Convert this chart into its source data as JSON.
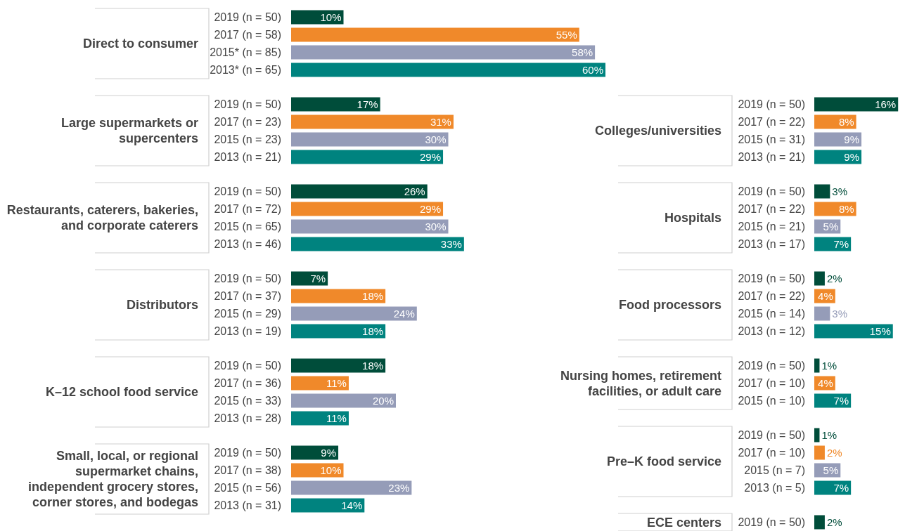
{
  "chart_data": [
    {
      "type": "bar",
      "orientation": "horizontal",
      "title": "Direct to consumer",
      "categories": [
        "2019 (n = 50)",
        "2017 (n = 58)",
        "2015* (n = 85)",
        "2013* (n = 65)"
      ],
      "values": [
        10,
        55,
        58,
        60
      ],
      "value_labels": [
        "10%",
        "55%",
        "58%",
        "60%"
      ],
      "colors": [
        "#004d3a",
        "#f0892a",
        "#959cb8",
        "#00837f"
      ]
    },
    {
      "type": "bar",
      "orientation": "horizontal",
      "title": "Large supermarkets or supercenters",
      "categories": [
        "2019 (n = 50)",
        "2017 (n = 23)",
        "2015 (n = 23)",
        "2013 (n = 21)"
      ],
      "values": [
        17,
        31,
        30,
        29
      ],
      "value_labels": [
        "17%",
        "31%",
        "30%",
        "29%"
      ],
      "colors": [
        "#004d3a",
        "#f0892a",
        "#959cb8",
        "#00837f"
      ]
    },
    {
      "type": "bar",
      "orientation": "horizontal",
      "title": "Restaurants, caterers, bakeries, and corporate caterers",
      "categories": [
        "2019 (n = 50)",
        "2017 (n = 72)",
        "2015 (n = 65)",
        "2013 (n = 46)"
      ],
      "values": [
        26,
        29,
        30,
        33
      ],
      "value_labels": [
        "26%",
        "29%",
        "30%",
        "33%"
      ],
      "colors": [
        "#004d3a",
        "#f0892a",
        "#959cb8",
        "#00837f"
      ]
    },
    {
      "type": "bar",
      "orientation": "horizontal",
      "title": "Distributors",
      "categories": [
        "2019 (n = 50)",
        "2017 (n = 37)",
        "2015 (n = 29)",
        "2013 (n = 19)"
      ],
      "values": [
        7,
        18,
        24,
        18
      ],
      "value_labels": [
        "7%",
        "18%",
        "24%",
        "18%"
      ],
      "colors": [
        "#004d3a",
        "#f0892a",
        "#959cb8",
        "#00837f"
      ]
    },
    {
      "type": "bar",
      "orientation": "horizontal",
      "title": "K–12 school food service",
      "categories": [
        "2019 (n = 50)",
        "2017 (n = 36)",
        "2015 (n = 33)",
        "2013 (n = 28)"
      ],
      "values": [
        18,
        11,
        20,
        11
      ],
      "value_labels": [
        "18%",
        "11%",
        "20%",
        "11%"
      ],
      "colors": [
        "#004d3a",
        "#f0892a",
        "#959cb8",
        "#00837f"
      ]
    },
    {
      "type": "bar",
      "orientation": "horizontal",
      "title": "Small, local, or regional supermarket chains, independent grocery stores, corner stores, and bodegas",
      "categories": [
        "2019 (n = 50)",
        "2017 (n = 38)",
        "2015 (n = 56)",
        "2013 (n = 31)"
      ],
      "values": [
        9,
        10,
        23,
        14
      ],
      "value_labels": [
        "9%",
        "10%",
        "23%",
        "14%"
      ],
      "colors": [
        "#004d3a",
        "#f0892a",
        "#959cb8",
        "#00837f"
      ]
    },
    {
      "type": "bar",
      "orientation": "horizontal",
      "title": "Colleges/universities",
      "categories": [
        "2019 (n = 50)",
        "2017 (n = 22)",
        "2015 (n = 31)",
        "2013 (n = 21)"
      ],
      "values": [
        16,
        8,
        9,
        9
      ],
      "value_labels": [
        "16%",
        "8%",
        "9%",
        "9%"
      ],
      "colors": [
        "#004d3a",
        "#f0892a",
        "#959cb8",
        "#00837f"
      ]
    },
    {
      "type": "bar",
      "orientation": "horizontal",
      "title": "Hospitals",
      "categories": [
        "2019 (n = 50)",
        "2017 (n = 22)",
        "2015 (n = 21)",
        "2013 (n = 17)"
      ],
      "values": [
        3,
        8,
        5,
        7
      ],
      "value_labels": [
        "3%",
        "8%",
        "5%",
        "7%"
      ],
      "colors": [
        "#004d3a",
        "#f0892a",
        "#959cb8",
        "#00837f"
      ]
    },
    {
      "type": "bar",
      "orientation": "horizontal",
      "title": "Food processors",
      "categories": [
        "2019 (n = 50)",
        "2017 (n = 22)",
        "2015 (n = 14)",
        "2013 (n = 12)"
      ],
      "values": [
        2,
        4,
        3,
        15
      ],
      "value_labels": [
        "2%",
        "4%",
        "3%",
        "15%"
      ],
      "colors": [
        "#004d3a",
        "#f0892a",
        "#959cb8",
        "#00837f"
      ]
    },
    {
      "type": "bar",
      "orientation": "horizontal",
      "title": "Nursing homes, retirement facilities, or adult care",
      "categories": [
        "2019 (n = 50)",
        "2017 (n = 10)",
        "2015 (n = 10)"
      ],
      "values": [
        1,
        4,
        7
      ],
      "value_labels": [
        "1%",
        "4%",
        "7%"
      ],
      "colors": [
        "#004d3a",
        "#f0892a",
        "#00837f"
      ]
    },
    {
      "type": "bar",
      "orientation": "horizontal",
      "title": "Pre–K food service",
      "categories": [
        "2019 (n = 50)",
        "2017 (n = 10)",
        "2015 (n = 7)",
        "2013 (n = 5)"
      ],
      "values": [
        1,
        2,
        5,
        7
      ],
      "value_labels": [
        "1%",
        "2%",
        "5%",
        "7%"
      ],
      "colors": [
        "#004d3a",
        "#f0892a",
        "#959cb8",
        "#00837f"
      ]
    },
    {
      "type": "bar",
      "orientation": "horizontal",
      "title": "ECE centers",
      "categories": [
        "2019 (n = 50)"
      ],
      "values": [
        2
      ],
      "value_labels": [
        "2%"
      ],
      "colors": [
        "#004d3a"
      ]
    }
  ]
}
